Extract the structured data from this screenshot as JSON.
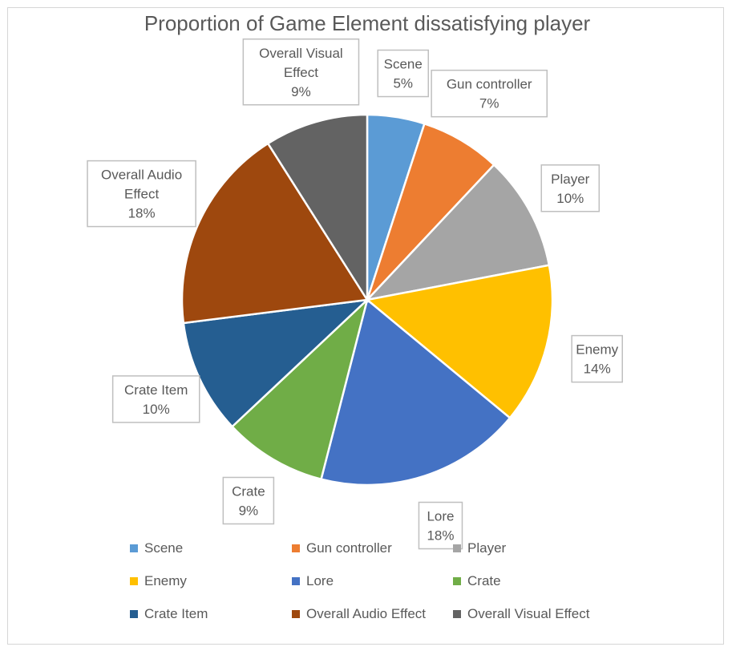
{
  "chart_data": {
    "type": "pie",
    "title": "Proportion of Game Element dissatisfying player",
    "categories": [
      "Scene",
      "Gun controller",
      "Player",
      "Enemy",
      "Lore",
      "Crate",
      "Crate Item",
      "Overall Audio Effect",
      "Overall Visual Effect"
    ],
    "values": [
      5,
      7,
      10,
      14,
      18,
      9,
      10,
      18,
      9
    ],
    "value_labels": [
      "5%",
      "7%",
      "10%",
      "14%",
      "18%",
      "9%",
      "10%",
      "18%",
      "9%"
    ],
    "data_labels": [
      [
        "Scene",
        "5%"
      ],
      [
        "Gun controller",
        "7%"
      ],
      [
        "Player",
        "10%"
      ],
      [
        "Enemy",
        "14%"
      ],
      [
        "Lore",
        "18%"
      ],
      [
        "Crate",
        "9%"
      ],
      [
        "Crate Item",
        "10%"
      ],
      [
        "Overall Audio",
        "Effect",
        "18%"
      ],
      [
        "Overall Visual",
        "Effect",
        "9%"
      ]
    ],
    "colors": [
      "#5B9BD5",
      "#ED7D31",
      "#A5A5A5",
      "#FFC000",
      "#4472C4",
      "#70AD47",
      "#255E91",
      "#9E480E",
      "#636363"
    ],
    "legend_position": "bottom"
  }
}
